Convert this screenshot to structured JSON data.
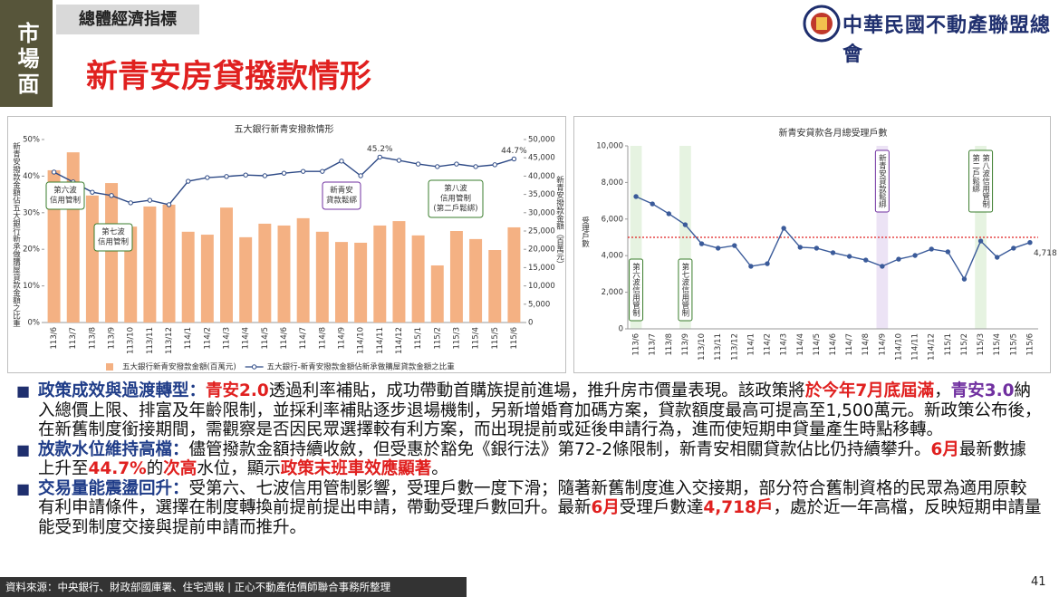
{
  "header": {
    "side_label": "市場面",
    "section": "總體經濟指標",
    "title": "新青安房貸撥款情形",
    "logo_text": "中華民國不動產聯盟總會"
  },
  "chart_data": [
    {
      "type": "combo",
      "title": "五大銀行新青安撥款情形",
      "categories": [
        "113/6",
        "113/7",
        "113/8",
        "113/9",
        "113/10",
        "113/11",
        "113/12",
        "114/1",
        "114/2",
        "114/3",
        "114/4",
        "114/5",
        "114/6",
        "114/7",
        "114/8",
        "114/9",
        "114/10",
        "114/11",
        "114/12",
        "115/1",
        "115/2",
        "115/3",
        "115/4",
        "115/5",
        "115/6"
      ],
      "ylabel": "新青安撥款金額佔五大銀行新承做購屋貸款金額之比重",
      "y2label": "新青安撥款金額（百萬元）",
      "ylim": [
        0,
        50
      ],
      "yticks": [
        {
          "value": 0,
          "label": "0%"
        },
        {
          "value": 10,
          "label": "10%"
        },
        {
          "value": 20,
          "label": "20%"
        },
        {
          "value": 30,
          "label": "30%"
        },
        {
          "value": 40,
          "label": "40%"
        },
        {
          "value": 50,
          "label": "50%"
        }
      ],
      "y2lim": [
        0,
        50000
      ],
      "y2ticks": [
        0,
        {
          "value": 5000,
          "label": "5,000"
        },
        {
          "value": 10000,
          "label": "10,000"
        },
        {
          "value": 15000,
          "label": "15,000"
        },
        {
          "value": 20000,
          "label": "20,000"
        },
        {
          "value": 25000,
          "label": "25,000"
        },
        {
          "value": 30000,
          "label": "30,000"
        },
        {
          "value": 35000,
          "label": "35,000"
        },
        {
          "value": 40000,
          "label": "40,000"
        },
        {
          "value": 45000,
          "label": "45,000"
        },
        {
          "value": 50000,
          "label": "50,000"
        }
      ],
      "grid": false,
      "series": [
        {
          "name": "五大銀行新青安撥款金額(百萬元)",
          "type": "bar",
          "axis": "y2",
          "color": "#f4b183",
          "values": [
            41600,
            46500,
            34700,
            38100,
            26200,
            31700,
            32200,
            24800,
            24000,
            31400,
            23300,
            27000,
            26500,
            28500,
            24800,
            22000,
            21800,
            26500,
            27700,
            23800,
            15600,
            25000,
            22800,
            19800,
            26000
          ]
        },
        {
          "name": "五大銀行-新青安撥款金額佔新承做購屋貸款金額之比重",
          "type": "line",
          "color": "#2e4a86",
          "values": [
            41.1,
            38.4,
            35.6,
            34.7,
            32.7,
            33.4,
            32.2,
            38.6,
            39.6,
            39.9,
            40.3,
            40.1,
            40.8,
            41.3,
            41.3,
            44.1,
            40.1,
            45.2,
            44.3,
            43.3,
            42.6,
            43.3,
            42.6,
            43.1,
            44.7
          ],
          "value_labels": [
            null,
            null,
            null,
            null,
            null,
            null,
            null,
            null,
            null,
            null,
            null,
            null,
            null,
            null,
            null,
            null,
            null,
            "45.2%",
            null,
            null,
            null,
            null,
            null,
            null,
            "44.7%"
          ]
        }
      ],
      "annotations": [
        {
          "lines": [
            "第六波",
            "信用管制"
          ],
          "color": "#3a7d2c"
        },
        {
          "lines": [
            "第七波",
            "信用管制"
          ],
          "color": "#3a7d2c"
        },
        {
          "lines": [
            "新青安",
            "貸款鬆綁"
          ],
          "color": "#7030a0"
        },
        {
          "lines": [
            "第八波",
            "信用管制",
            "(第二戶鬆綁)"
          ],
          "color": "#3a7d2c"
        }
      ]
    },
    {
      "type": "line",
      "title": "新青安貸款各月總受理戶數",
      "categories": [
        "113/6",
        "113/7",
        "113/8",
        "113/9",
        "113/10",
        "113/11",
        "113/12",
        "114/1",
        "114/2",
        "114/3",
        "114/4",
        "114/5",
        "114/6",
        "114/7",
        "114/8",
        "114/9",
        "114/10",
        "114/11",
        "114/12",
        "115/1",
        "115/2",
        "115/3",
        "115/4",
        "115/5",
        "115/6"
      ],
      "ylabel": "受理戶數",
      "ylim": [
        0,
        10000
      ],
      "yticks": [
        0,
        {
          "value": 2000,
          "label": "2,000"
        },
        {
          "value": 4000,
          "label": "4,000"
        },
        {
          "value": 6000,
          "label": "6,000"
        },
        {
          "value": 8000,
          "label": "8,000"
        },
        {
          "value": 10000,
          "label": "10,000"
        }
      ],
      "grid": false,
      "reference_line": {
        "value": 5000,
        "color": "#e02020"
      },
      "series": [
        {
          "name": "受理戶數",
          "color": "#3b5b9a",
          "values": [
            7230,
            6830,
            6290,
            5690,
            4650,
            4410,
            4550,
            3420,
            3560,
            5500,
            4460,
            4410,
            4160,
            3960,
            3760,
            3420,
            3810,
            4010,
            4360,
            4210,
            2720,
            4800,
            3910,
            4410,
            4718
          ],
          "value_labels": [
            null,
            null,
            null,
            null,
            null,
            null,
            null,
            null,
            null,
            null,
            null,
            null,
            null,
            null,
            null,
            null,
            null,
            null,
            null,
            null,
            null,
            null,
            null,
            null,
            "4,718"
          ]
        }
      ],
      "annotations": [
        {
          "lines": [
            "第六波信用管制"
          ],
          "color": "#3a7d2c"
        },
        {
          "lines": [
            "第七波信用管制"
          ],
          "color": "#3a7d2c"
        },
        {
          "lines": [
            "新青安貸款鬆綁"
          ],
          "color": "#7030a0"
        },
        {
          "lines": [
            "第八波信用管制",
            "第二戶鬆綁"
          ],
          "color": "#3a7d2c"
        }
      ]
    }
  ],
  "bullets": [
    {
      "segments": [
        {
          "text": "政策成效與過渡轉型：",
          "style": "label"
        },
        {
          "text": "青安2.0",
          "style": "red"
        },
        {
          "text": "透過利率補貼，成功帶動首購族提前進場，推升房市價量表現。該政策將",
          "style": "normal"
        },
        {
          "text": "於今年7月底屆滿",
          "style": "red"
        },
        {
          "text": "，",
          "style": "normal"
        },
        {
          "text": "青安3.0",
          "style": "purple"
        },
        {
          "text": "納入總價上限、排富及年齡限制，並採利率補貼逐步退場機制，另新增婚育加碼方案，貸款額度最高可提高至1,500萬元。新政策公布後，在新舊制度銜接期間，需觀察是否因民眾選擇較有利方案，而出現提前或延後申請行為，進而使短期申貸量產生時點移轉。",
          "style": "normal"
        }
      ]
    },
    {
      "segments": [
        {
          "text": "放款水位維持高檔：",
          "style": "label"
        },
        {
          "text": "儘管撥款金額持續收斂，但受惠於豁免《銀行法》第72-2條限制，新青安相關貸款佔比仍持續攀升。",
          "style": "normal"
        },
        {
          "text": "6月",
          "style": "red"
        },
        {
          "text": "最新數據上升至",
          "style": "normal"
        },
        {
          "text": "44.7%",
          "style": "red"
        },
        {
          "text": "的",
          "style": "normal"
        },
        {
          "text": "次高",
          "style": "red"
        },
        {
          "text": "水位，顯示",
          "style": "normal"
        },
        {
          "text": "政策末班車效應顯著",
          "style": "red"
        },
        {
          "text": "。",
          "style": "normal"
        }
      ]
    },
    {
      "segments": [
        {
          "text": "交易量能震盪回升：",
          "style": "label"
        },
        {
          "text": "受第六、七波信用管制影響，受理戶數一度下滑；隨著新舊制度進入交接期，部分符合舊制資格的民眾為適用原較有利申請條件，選擇在制度轉換前提前提出申請，帶動受理戶數回升。最新",
          "style": "normal"
        },
        {
          "text": "6月",
          "style": "red"
        },
        {
          "text": "受理戶數達",
          "style": "normal"
        },
        {
          "text": "4,718戶",
          "style": "red"
        },
        {
          "text": "，處於近一年高檔，反映短期申請量能受到制度交接與提前申請而推升。",
          "style": "normal"
        }
      ]
    }
  ],
  "footer": {
    "source": "資料來源：中央銀行、財政部國庫署、住宅週報 | 正心不動產估價師聯合事務所整理",
    "page": "41"
  }
}
